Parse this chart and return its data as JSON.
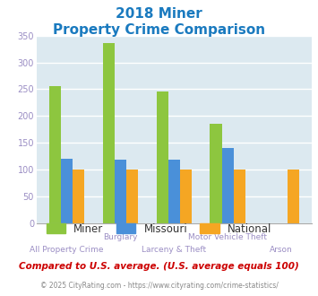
{
  "title_line1": "2018 Miner",
  "title_line2": "Property Crime Comparison",
  "title_color": "#1a7abf",
  "categories": [
    "All Property Crime",
    "Burglary",
    "Larceny & Theft",
    "Motor Vehicle Theft",
    "Arson"
  ],
  "xtick_labels": [
    "All Property Crime\n",
    "Burglary\n",
    "Larceny & Theft\n",
    "Motor Vehicle Theft\n",
    "Arson\n"
  ],
  "series": {
    "Miner": [
      255,
      336,
      246,
      186,
      0
    ],
    "Missouri": [
      121,
      119,
      119,
      141,
      0
    ],
    "National": [
      100,
      100,
      100,
      100,
      100
    ]
  },
  "colors": {
    "Miner": "#8dc63f",
    "Missouri": "#4a90d9",
    "National": "#f5a623"
  },
  "ylim": [
    0,
    350
  ],
  "yticks": [
    0,
    50,
    100,
    150,
    200,
    250,
    300,
    350
  ],
  "bg_color": "#dce9f0",
  "grid_color": "#ffffff",
  "footnote1": "Compared to U.S. average. (U.S. average equals 100)",
  "footnote1_color": "#cc0000",
  "footnote2": "© 2025 CityRating.com - https://www.cityrating.com/crime-statistics/",
  "footnote2_color": "#888888",
  "xlabel_color": "#9b8ec4",
  "tick_color": "#9b8ec4",
  "bar_width": 0.22
}
